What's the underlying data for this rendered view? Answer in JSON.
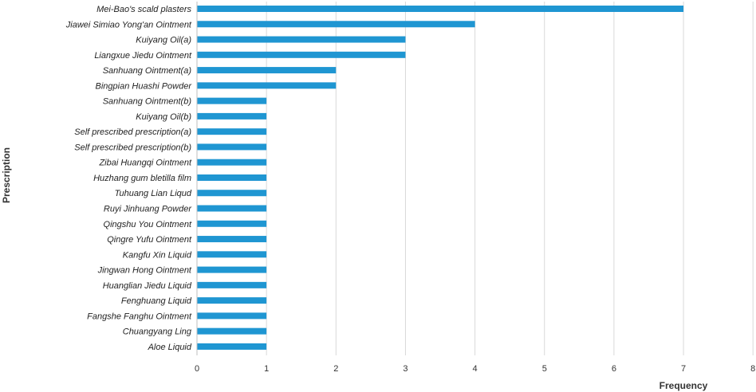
{
  "chart_data": {
    "type": "bar",
    "orientation": "horizontal",
    "categories": [
      "Mei-Bao's scald plasters",
      "Jiawei Simiao Yong'an Ointment",
      "Kuiyang Oil(a)",
      "Liangxue Jiedu Ointment",
      "Sanhuang Ointment(a)",
      "Bingpian Huashi Powder",
      "Sanhuang Ointment(b)",
      "Kuiyang Oil(b)",
      "Self prescribed prescription(a)",
      "Self prescribed prescription(b)",
      "Zibai Huangqi Ointment",
      "Huzhang gum bletilla film",
      "Tuhuang Lian Liqud",
      "Ruyi Jinhuang Powder",
      "Qingshu You Ointment",
      "Qingre Yufu Ointment",
      "Kangfu Xin Liquid",
      "Jingwan Hong Ointment",
      "Huanglian Jiedu Liquid",
      "Fenghuang Liquid",
      "Fangshe Fanghu Ointment",
      "Chuangyang Ling",
      "Aloe Liquid"
    ],
    "values": [
      7,
      4,
      3,
      3,
      2,
      2,
      1,
      1,
      1,
      1,
      1,
      1,
      1,
      1,
      1,
      1,
      1,
      1,
      1,
      1,
      1,
      1,
      1
    ],
    "xlabel": "Frequency",
    "ylabel": "Prescription",
    "xlim": [
      0,
      8
    ],
    "xticks": [
      "0",
      "1",
      "2",
      "3",
      "4",
      "5",
      "6",
      "7",
      "8"
    ],
    "grid": "vertical",
    "legend": "none",
    "bar_color": "#1f96d2"
  }
}
